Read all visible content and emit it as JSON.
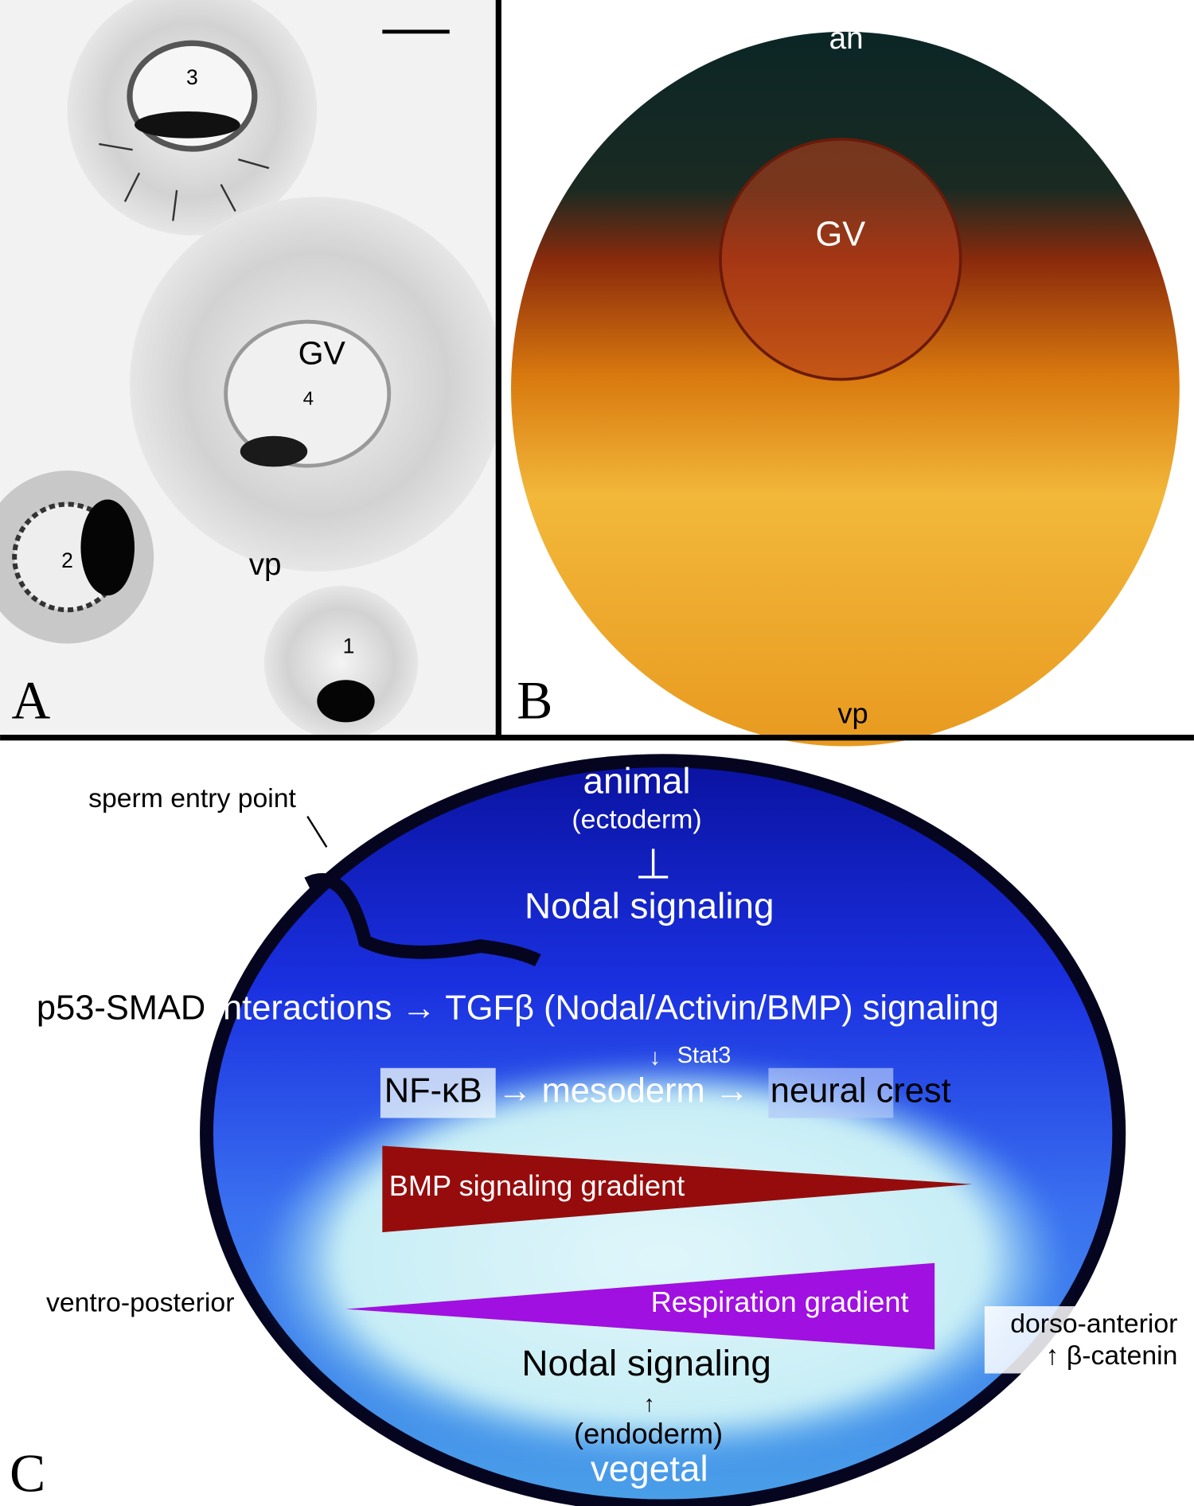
{
  "panel_a": {
    "label": "A",
    "egg_3": "3",
    "gv": "GV",
    "egg_4": "4",
    "egg_2": "2",
    "vp": "vp",
    "egg_1": "1"
  },
  "panel_b": {
    "label": "B",
    "an": "an",
    "gv": "GV",
    "vp": "vp"
  },
  "panel_c": {
    "label": "C",
    "sperm_entry_point": "sperm entry point",
    "animal": "animal",
    "ectoderm": "(ectoderm)",
    "inhibits": "⊥",
    "nodal_signaling_top": "Nodal signaling",
    "p53_smad": "p53-SMAD",
    "tgf_line": "interactions → TGFβ (Nodal/Activin/BMP) signaling",
    "down_arrow": "↓",
    "stat3": "Stat3",
    "nf_kb": "NF-κB",
    "mesoderm": "→ mesoderm →",
    "neural_crest": "neural crest",
    "bmp_gradient": "BMP signaling gradient",
    "respiration_gradient": "Respiration gradient",
    "ventro_posterior": "ventro-posterior",
    "dorso_anterior": "dorso-anterior",
    "beta_catenin": "↑ β-catenin",
    "nodal_signaling_bottom": "Nodal signaling",
    "up_arrow": "↑",
    "endoderm": "(endoderm)",
    "vegetal": "vegetal"
  }
}
